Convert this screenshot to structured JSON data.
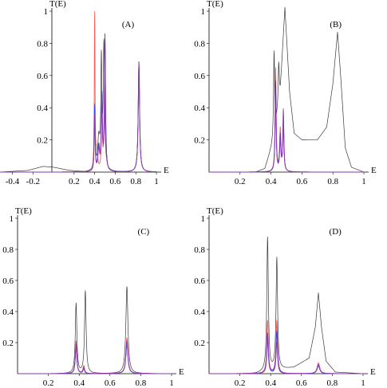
{
  "colors": {
    "black": "#3a3a3a",
    "red": "#ff5a5a",
    "blue": "#3a3aff",
    "purple": "#8a3aa8"
  },
  "chart_data": [
    {
      "id": "A",
      "type": "line",
      "panel_label": "(A)",
      "ylabel": "T(E)",
      "xlabel": "E",
      "xlim": [
        -0.52,
        1.0
      ],
      "ylim": [
        0,
        1.0
      ],
      "xticks": [
        -0.4,
        -0.2,
        0.2,
        0.4,
        0.6,
        0.8,
        1
      ],
      "xtick_labels": [
        "-0.4",
        "-0.2",
        "0.2",
        "0.4",
        "0.6",
        "0.8",
        "1"
      ],
      "yticks": [
        0.2,
        0.4,
        0.6,
        0.8,
        1
      ],
      "ytick_labels": [
        "0.2",
        "0.4",
        "0.6",
        "0.8",
        "1"
      ],
      "series": [
        {
          "color": "black",
          "base": [
            [
              -0.52,
              0.0
            ],
            [
              -0.25,
              0.01
            ],
            [
              -0.1,
              0.035
            ],
            [
              0.0,
              0.03
            ],
            [
              0.15,
              0.01
            ],
            [
              0.3,
              0.0
            ],
            [
              1.0,
              0.0
            ]
          ],
          "peaks": [
            [
              0.4,
              0.4,
              0.006
            ],
            [
              0.44,
              0.19,
              0.012
            ],
            [
              0.465,
              0.65,
              0.006
            ],
            [
              0.49,
              0.78,
              0.008
            ],
            [
              0.83,
              0.69,
              0.008
            ]
          ]
        },
        {
          "color": "red",
          "base": [
            [
              -0.52,
              0.0
            ],
            [
              1.0,
              0.0
            ]
          ],
          "peaks": [
            [
              0.4,
              0.98,
              0.004
            ],
            [
              0.42,
              0.12,
              0.01
            ],
            [
              0.47,
              0.35,
              0.006
            ],
            [
              0.5,
              0.8,
              0.006
            ],
            [
              0.83,
              0.66,
              0.008
            ]
          ]
        },
        {
          "color": "blue",
          "base": [
            [
              -0.52,
              0.0
            ],
            [
              1.0,
              0.0
            ]
          ],
          "peaks": [
            [
              0.4,
              0.4,
              0.005
            ],
            [
              0.44,
              0.15,
              0.01
            ],
            [
              0.47,
              0.46,
              0.006
            ],
            [
              0.5,
              0.82,
              0.006
            ],
            [
              0.83,
              0.67,
              0.008
            ]
          ]
        },
        {
          "color": "purple",
          "base": [
            [
              -0.52,
              0.0
            ],
            [
              1.0,
              0.0
            ]
          ],
          "peaks": [
            [
              0.4,
              0.35,
              0.005
            ],
            [
              0.44,
              0.13,
              0.01
            ],
            [
              0.47,
              0.42,
              0.006
            ],
            [
              0.5,
              0.84,
              0.006
            ],
            [
              0.83,
              0.68,
              0.008
            ]
          ]
        }
      ]
    },
    {
      "id": "B",
      "type": "line",
      "panel_label": "(B)",
      "ylabel": "T(E)",
      "xlabel": "E",
      "xlim": [
        0.0,
        1.0
      ],
      "ylim": [
        0,
        1.0
      ],
      "xticks": [
        0.2,
        0.4,
        0.6,
        0.8,
        1
      ],
      "xtick_labels": [
        "0.2",
        "0.4",
        "0.6",
        "0.8",
        "1"
      ],
      "yticks": [
        0.2,
        0.4,
        0.6,
        0.8,
        1
      ],
      "ytick_labels": [
        "0.2",
        "0.4",
        "0.6",
        "0.8",
        "1"
      ],
      "series": [
        {
          "color": "black",
          "base": [
            [
              0.0,
              0.0
            ],
            [
              0.3,
              0.0
            ],
            [
              0.36,
              0.02
            ],
            [
              0.42,
              0.2
            ],
            [
              0.46,
              0.5
            ],
            [
              0.49,
              1.02
            ],
            [
              0.52,
              0.5
            ],
            [
              0.55,
              0.24
            ],
            [
              0.6,
              0.2
            ],
            [
              0.7,
              0.2
            ],
            [
              0.76,
              0.28
            ],
            [
              0.8,
              0.55
            ],
            [
              0.83,
              0.87
            ],
            [
              0.85,
              0.6
            ],
            [
              0.88,
              0.15
            ],
            [
              0.92,
              0.03
            ],
            [
              1.0,
              0.0
            ]
          ],
          "peaks": [
            [
              0.42,
              0.55,
              0.004
            ],
            [
              0.45,
              0.25,
              0.004
            ]
          ]
        },
        {
          "color": "red",
          "base": [
            [
              0.0,
              0.0
            ],
            [
              1.0,
              0.0
            ]
          ],
          "peaks": [
            [
              0.43,
              0.64,
              0.004
            ],
            [
              0.46,
              0.26,
              0.005
            ],
            [
              0.48,
              0.28,
              0.004
            ]
          ]
        },
        {
          "color": "blue",
          "base": [
            [
              0.0,
              0.0
            ],
            [
              1.0,
              0.0
            ]
          ],
          "peaks": [
            [
              0.43,
              0.56,
              0.004
            ],
            [
              0.46,
              0.22,
              0.005
            ],
            [
              0.48,
              0.34,
              0.004
            ]
          ]
        },
        {
          "color": "purple",
          "base": [
            [
              0.0,
              0.0
            ],
            [
              1.0,
              0.0
            ]
          ],
          "peaks": [
            [
              0.43,
              0.5,
              0.004
            ],
            [
              0.46,
              0.18,
              0.005
            ],
            [
              0.48,
              0.38,
              0.004
            ]
          ]
        }
      ]
    },
    {
      "id": "C",
      "type": "line",
      "panel_label": "(C)",
      "ylabel": "T(E)",
      "xlabel": "E",
      "xlim": [
        0.0,
        1.0
      ],
      "ylim": [
        0,
        1.0
      ],
      "xticks": [
        0.2,
        0.4,
        0.6,
        0.8,
        1
      ],
      "xtick_labels": [
        "0.2",
        "0.4",
        "0.6",
        "0.8",
        "1"
      ],
      "yticks": [
        0.2,
        0.4,
        0.6,
        0.8,
        1
      ],
      "ytick_labels": [
        "0.2",
        "0.4",
        "0.6",
        "0.8",
        "1"
      ],
      "series": [
        {
          "color": "black",
          "base": [
            [
              0.0,
              0.0
            ],
            [
              1.0,
              0.0
            ]
          ],
          "peaks": [
            [
              0.38,
              0.45,
              0.006
            ],
            [
              0.44,
              0.53,
              0.006
            ],
            [
              0.71,
              0.56,
              0.008
            ]
          ]
        },
        {
          "color": "red",
          "base": [
            [
              0.0,
              0.0
            ],
            [
              1.0,
              0.0
            ]
          ],
          "peaks": [
            [
              0.38,
              0.21,
              0.006
            ],
            [
              0.43,
              0.05,
              0.006
            ],
            [
              0.71,
              0.23,
              0.008
            ]
          ]
        },
        {
          "color": "blue",
          "base": [
            [
              0.0,
              0.0
            ],
            [
              1.0,
              0.0
            ]
          ],
          "peaks": [
            [
              0.38,
              0.17,
              0.006
            ],
            [
              0.43,
              0.03,
              0.006
            ],
            [
              0.71,
              0.19,
              0.008
            ]
          ]
        },
        {
          "color": "purple",
          "base": [
            [
              0.0,
              0.0
            ],
            [
              1.0,
              0.0
            ]
          ],
          "peaks": [
            [
              0.38,
              0.19,
              0.006
            ],
            [
              0.43,
              0.04,
              0.006
            ],
            [
              0.71,
              0.21,
              0.008
            ]
          ]
        }
      ]
    },
    {
      "id": "D",
      "type": "line",
      "panel_label": "(D)",
      "ylabel": "T(E)",
      "xlabel": "E",
      "xlim": [
        0.0,
        1.0
      ],
      "ylim": [
        0,
        1.0
      ],
      "xticks": [
        0.2,
        0.4,
        0.6,
        0.8,
        1
      ],
      "xtick_labels": [
        "0.2",
        "0.4",
        "0.6",
        "0.8",
        "1"
      ],
      "yticks": [
        0.2,
        0.4,
        0.6,
        0.8,
        1
      ],
      "ytick_labels": [
        "0.2",
        "0.4",
        "0.6",
        "0.8",
        "1"
      ],
      "series": [
        {
          "color": "black",
          "base": [
            [
              0.0,
              0.0
            ],
            [
              0.3,
              0.0
            ],
            [
              0.55,
              0.04
            ],
            [
              0.65,
              0.1
            ],
            [
              0.69,
              0.3
            ],
            [
              0.71,
              0.52
            ],
            [
              0.73,
              0.3
            ],
            [
              0.76,
              0.08
            ],
            [
              0.82,
              0.01
            ],
            [
              1.0,
              0.0
            ]
          ],
          "peaks": [
            [
              0.38,
              0.86,
              0.006
            ],
            [
              0.44,
              0.72,
              0.006
            ]
          ]
        },
        {
          "color": "red",
          "base": [
            [
              0.0,
              0.0
            ],
            [
              1.0,
              0.0
            ]
          ],
          "peaks": [
            [
              0.38,
              0.34,
              0.006
            ],
            [
              0.44,
              0.34,
              0.006
            ],
            [
              0.71,
              0.07,
              0.01
            ]
          ]
        },
        {
          "color": "blue",
          "base": [
            [
              0.0,
              0.0
            ],
            [
              1.0,
              0.0
            ]
          ],
          "peaks": [
            [
              0.38,
              0.26,
              0.006
            ],
            [
              0.44,
              0.27,
              0.006
            ],
            [
              0.71,
              0.05,
              0.01
            ]
          ]
        },
        {
          "color": "purple",
          "base": [
            [
              0.0,
              0.0
            ],
            [
              1.0,
              0.0
            ]
          ],
          "peaks": [
            [
              0.38,
              0.22,
              0.006
            ],
            [
              0.44,
              0.2,
              0.006
            ],
            [
              0.71,
              0.06,
              0.01
            ]
          ]
        }
      ]
    }
  ]
}
